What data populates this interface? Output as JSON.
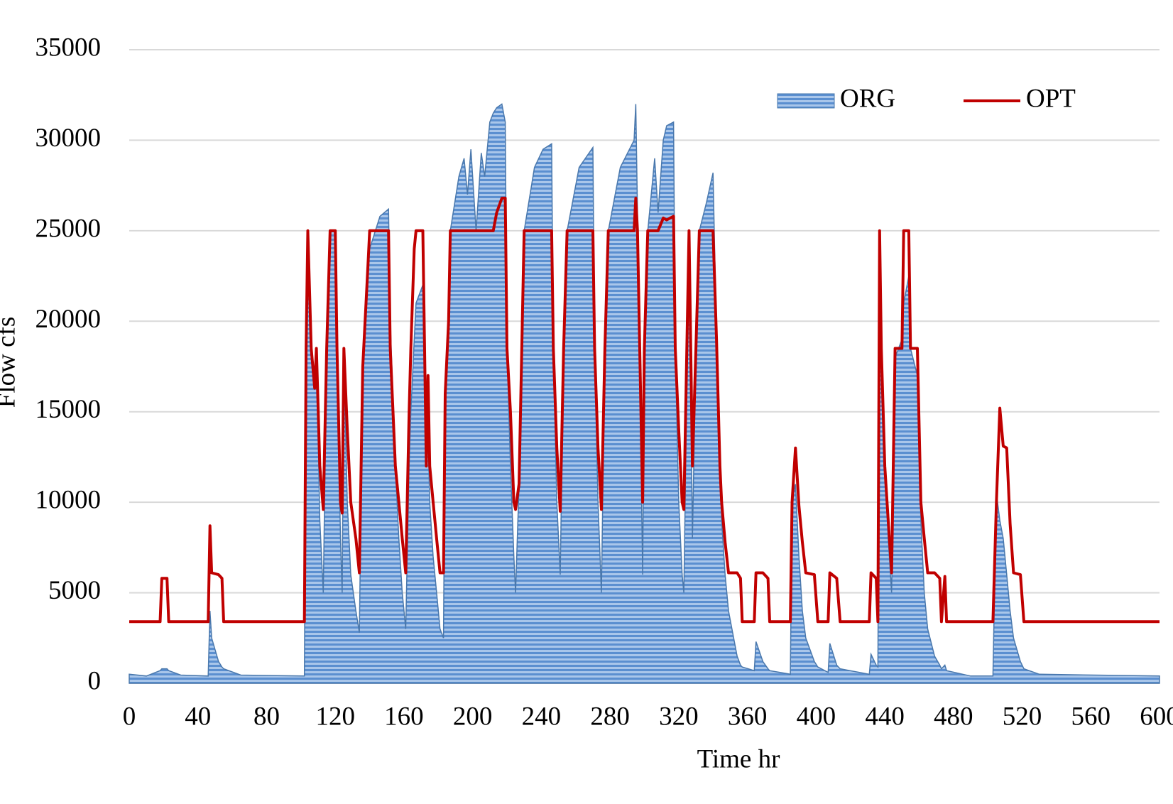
{
  "chart_data": {
    "type": "line",
    "xlabel": "Time hr",
    "ylabel": "Flow cfs",
    "x": [
      0,
      10,
      18,
      19,
      22,
      23,
      30,
      46,
      47,
      48,
      52,
      54,
      55,
      65,
      102,
      103,
      104,
      106,
      108,
      109,
      111,
      113,
      115,
      117,
      120,
      121,
      123,
      124,
      125,
      127,
      129,
      132,
      134,
      136,
      139,
      140,
      146,
      151,
      152,
      155,
      157,
      159,
      161,
      163,
      164,
      166,
      167,
      171,
      173,
      174,
      175,
      177,
      179,
      181,
      183,
      184,
      186,
      187,
      192,
      195,
      197,
      199,
      202,
      205,
      207,
      210,
      212,
      214,
      217,
      219,
      220,
      222,
      224,
      225,
      227,
      230,
      236,
      241,
      246,
      247,
      249,
      251,
      253,
      255,
      262,
      270,
      271,
      273,
      275,
      277,
      279,
      286,
      294,
      295,
      296,
      299,
      300,
      302,
      306,
      308,
      311,
      313,
      317,
      318,
      320,
      322,
      323,
      326,
      328,
      330,
      332,
      336,
      340,
      342,
      344,
      345,
      347,
      349,
      354,
      356,
      357,
      364,
      365,
      369,
      372,
      373,
      385,
      386,
      388,
      390,
      392,
      394,
      399,
      401,
      407,
      408,
      412,
      414,
      431,
      432,
      435,
      436,
      437,
      438,
      440,
      442,
      444,
      446,
      450,
      451,
      454,
      455,
      459,
      461,
      463,
      465,
      469,
      472,
      473,
      475,
      476,
      490,
      503,
      505,
      507,
      509,
      511,
      513,
      515,
      519,
      521,
      530,
      600
    ],
    "series": [
      {
        "name": "ORG",
        "color": "#5b8fd0",
        "area": true,
        "values": [
          500,
          400,
          700,
          800,
          800,
          700,
          450,
          400,
          4000,
          2500,
          1200,
          900,
          800,
          450,
          400,
          18000,
          25000,
          18500,
          16500,
          18500,
          9000,
          5000,
          18500,
          25000,
          25000,
          18500,
          8000,
          5000,
          18500,
          10000,
          6000,
          4000,
          2800,
          17500,
          23000,
          24000,
          25800,
          26200,
          20000,
          12000,
          8000,
          5000,
          3000,
          12000,
          15000,
          19000,
          21000,
          22000,
          12000,
          14000,
          10000,
          7000,
          5000,
          3000,
          2500,
          16000,
          20000,
          25000,
          28000,
          29000,
          27000,
          29500,
          25000,
          29300,
          28000,
          31000,
          31500,
          31800,
          32000,
          31000,
          18500,
          12000,
          7000,
          5000,
          11000,
          25000,
          28500,
          29500,
          29800,
          18500,
          10000,
          6000,
          18500,
          25000,
          28500,
          29600,
          18500,
          10000,
          5000,
          18500,
          25000,
          28500,
          30000,
          32000,
          26000,
          6000,
          18500,
          25000,
          29000,
          26000,
          30000,
          30800,
          31000,
          18500,
          10000,
          6000,
          5000,
          25000,
          8000,
          18500,
          25000,
          26500,
          28200,
          19000,
          12000,
          9000,
          6000,
          4000,
          1500,
          1000,
          900,
          700,
          2300,
          1200,
          800,
          700,
          500,
          10000,
          11000,
          7000,
          4000,
          2500,
          1200,
          900,
          600,
          2200,
          1000,
          800,
          500,
          1600,
          1000,
          900,
          25000,
          18500,
          12000,
          8000,
          5000,
          18000,
          19000,
          21000,
          22500,
          18500,
          17000,
          9000,
          5000,
          3000,
          1500,
          1000,
          800,
          1000,
          700,
          400,
          400,
          10500,
          9000,
          8000,
          6000,
          4000,
          2500,
          1200,
          800,
          500,
          400
        ]
      },
      {
        "name": "OPT",
        "color": "#c00000",
        "values": [
          3400,
          3400,
          3400,
          5800,
          5800,
          3400,
          3400,
          3400,
          8700,
          6100,
          6000,
          5800,
          3400,
          3400,
          3400,
          18500,
          25000,
          18500,
          16300,
          18500,
          12000,
          9600,
          18500,
          25000,
          25000,
          18500,
          10000,
          9400,
          18500,
          14000,
          10000,
          8000,
          6100,
          17500,
          23000,
          25000,
          25000,
          25000,
          18500,
          12000,
          10000,
          8000,
          6100,
          15000,
          18500,
          24000,
          25000,
          25000,
          12000,
          17000,
          12000,
          10000,
          8000,
          6100,
          6100,
          16000,
          20000,
          25000,
          25000,
          25000,
          25000,
          25000,
          25000,
          25000,
          25000,
          25000,
          25000,
          26000,
          26800,
          26800,
          18500,
          15000,
          10000,
          9600,
          11000,
          25000,
          25000,
          25000,
          25000,
          18500,
          13000,
          9500,
          18500,
          25000,
          25000,
          25000,
          18500,
          13000,
          9600,
          18500,
          25000,
          25000,
          25000,
          26800,
          25000,
          10000,
          18500,
          25000,
          25000,
          25000,
          25700,
          25600,
          25800,
          18500,
          14000,
          10000,
          9600,
          25000,
          12000,
          18500,
          25000,
          25000,
          25000,
          19000,
          12000,
          10000,
          7800,
          6100,
          6100,
          5800,
          3400,
          3400,
          6100,
          6100,
          5800,
          3400,
          3400,
          10000,
          13000,
          9800,
          7800,
          6100,
          6000,
          3400,
          3400,
          6100,
          5800,
          3400,
          3400,
          6100,
          5800,
          3400,
          25000,
          18500,
          12000,
          9000,
          6100,
          18500,
          18500,
          25000,
          25000,
          18500,
          18500,
          10000,
          8000,
          6100,
          6100,
          5800,
          3400,
          5900,
          3400,
          3400,
          3400,
          10000,
          15200,
          13100,
          13000,
          8800,
          6100,
          6000,
          3400,
          3400,
          3400
        ]
      }
    ],
    "xlim": [
      0,
      600
    ],
    "xticks": [
      0,
      40,
      80,
      120,
      160,
      200,
      240,
      280,
      320,
      360,
      400,
      440,
      480,
      520,
      560,
      600
    ],
    "ylim": [
      0,
      35000
    ],
    "yticks": [
      0,
      5000,
      10000,
      15000,
      20000,
      25000,
      30000,
      35000
    ],
    "grid": true,
    "legend": "top-right"
  }
}
